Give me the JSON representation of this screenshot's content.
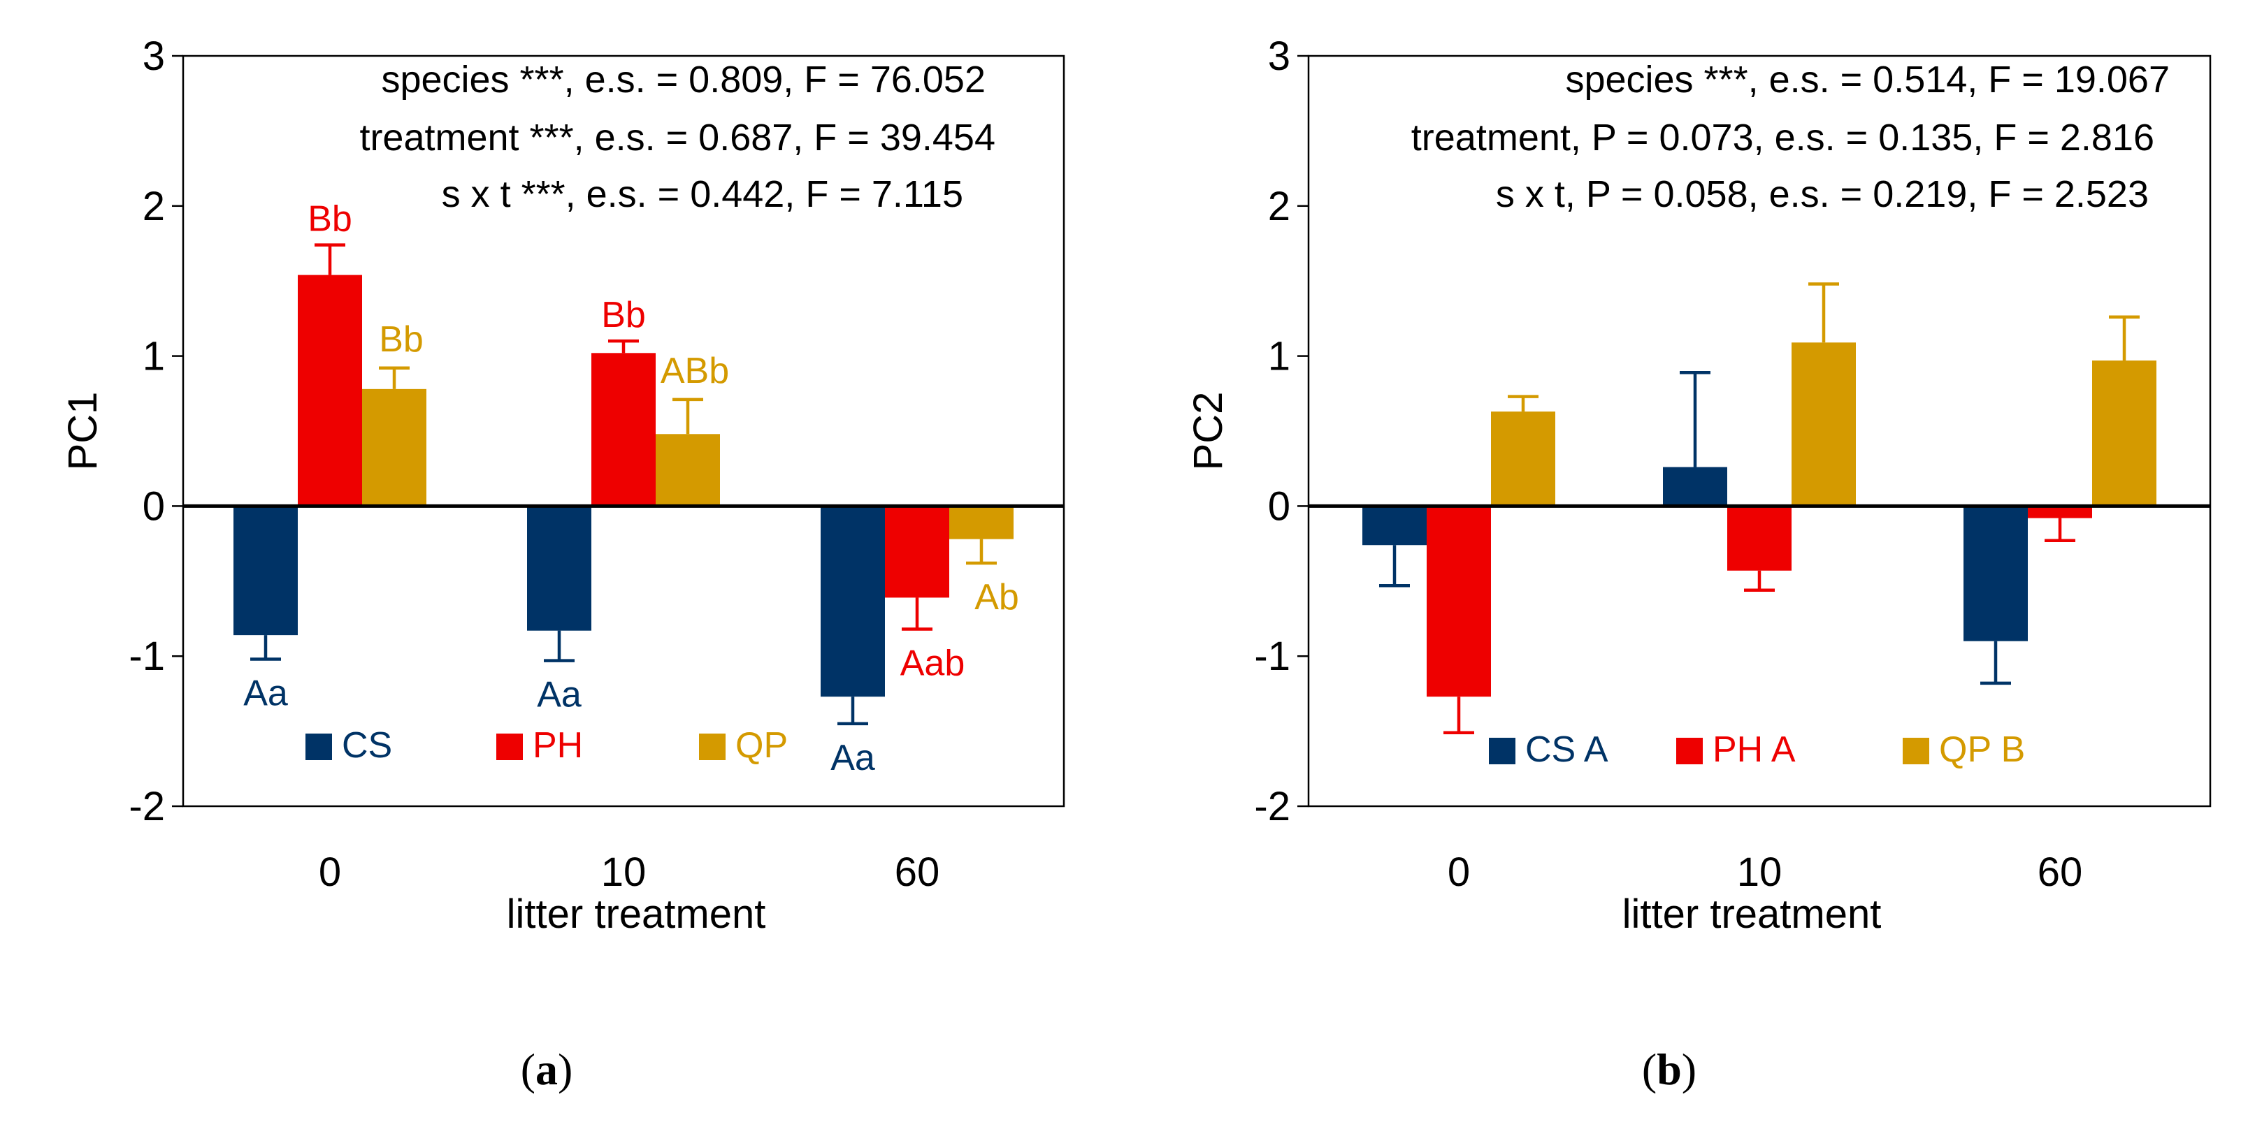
{
  "colors": {
    "CS": "#003366",
    "PH": "#ee0000",
    "QP": "#d49a00",
    "axis": "#000000",
    "text": "#000000"
  },
  "chart_data": [
    {
      "id": "a",
      "type": "bar",
      "panel_label_prefix": "(",
      "panel_label_letter": "a",
      "panel_label_suffix": ")",
      "ylabel": "PC1",
      "xlabel": "litter treatment",
      "categories": [
        "0",
        "10",
        "60"
      ],
      "ylim": [
        -2,
        3
      ],
      "yticks": [
        -2,
        -1,
        0,
        1,
        2,
        3
      ],
      "ytick_labels": [
        "-2",
        "-1",
        "0",
        "1",
        "2",
        "3"
      ],
      "series": [
        {
          "key": "CS",
          "name": "CS",
          "values": [
            -0.86,
            -0.83,
            -1.27
          ],
          "errors": [
            0.16,
            0.2,
            0.18
          ],
          "labels": [
            "Aa",
            "Aa",
            "Aa"
          ]
        },
        {
          "key": "PH",
          "name": "PH",
          "values": [
            1.54,
            1.02,
            -0.61
          ],
          "errors": [
            0.2,
            0.08,
            0.21
          ],
          "labels": [
            "Bb",
            "Bb",
            "Aab"
          ]
        },
        {
          "key": "QP",
          "name": "QP",
          "values": [
            0.78,
            0.48,
            -0.22
          ],
          "errors": [
            0.14,
            0.23,
            0.16
          ],
          "labels": [
            "Bb",
            "ABb",
            "Ab"
          ]
        }
      ],
      "legend": [
        {
          "key": "CS",
          "text": "CS"
        },
        {
          "key": "PH",
          "text": "PH"
        },
        {
          "key": "QP",
          "text": "QP"
        }
      ],
      "annotations": [
        "species ***, e.s. = 0.809, F = 76.052",
        "treatment ***, e.s. = 0.687,  F = 39.454",
        "s x t ***, e.s. = 0.442, F = 7.115"
      ]
    },
    {
      "id": "b",
      "type": "bar",
      "panel_label_prefix": "(",
      "panel_label_letter": "b",
      "panel_label_suffix": ")",
      "ylabel": "PC2",
      "xlabel": "litter treatment",
      "categories": [
        "0",
        "10",
        "60"
      ],
      "ylim": [
        -2,
        3
      ],
      "yticks": [
        -2,
        -1,
        0,
        1,
        2,
        3
      ],
      "ytick_labels": [
        "-2",
        "-1",
        "0",
        "1",
        "2",
        "3"
      ],
      "series": [
        {
          "key": "CS",
          "name": "CS",
          "values": [
            -0.26,
            0.26,
            -0.9
          ],
          "errors": [
            0.27,
            0.63,
            0.28
          ],
          "labels": [
            "",
            "",
            ""
          ]
        },
        {
          "key": "PH",
          "name": "PH",
          "values": [
            -1.27,
            -0.43,
            -0.08
          ],
          "errors": [
            0.24,
            0.13,
            0.15
          ],
          "labels": [
            "",
            "",
            ""
          ]
        },
        {
          "key": "QP",
          "name": "QP",
          "values": [
            0.63,
            1.09,
            0.97
          ],
          "errors": [
            0.1,
            0.39,
            0.29
          ],
          "labels": [
            "",
            "",
            ""
          ]
        }
      ],
      "legend": [
        {
          "key": "CS",
          "text": "CS  A"
        },
        {
          "key": "PH",
          "text": "PH  A"
        },
        {
          "key": "QP",
          "text": "QP  B"
        }
      ],
      "annotations": [
        "species ***, e.s. = 0.514, F = 19.067",
        "treatment, P = 0.073, e.s. = 0.135, F = 2.816",
        "s x t, P = 0.058, e.s. = 0.219, F = 2.523"
      ]
    }
  ]
}
